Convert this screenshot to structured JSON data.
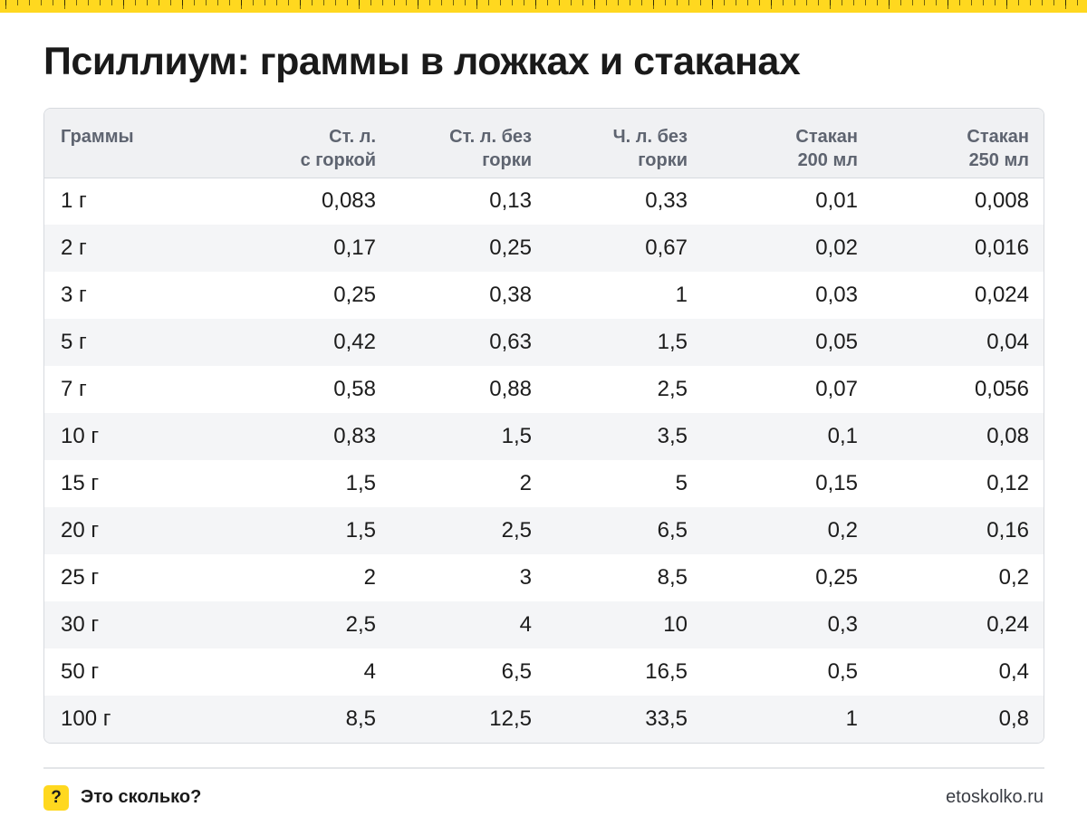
{
  "title": "Псиллиум: граммы в ложках и стаканах",
  "table": {
    "headers": [
      [
        "Граммы",
        ""
      ],
      [
        "Ст. л.",
        "с горкой"
      ],
      [
        "Ст. л. без",
        "горки"
      ],
      [
        "Ч. л. без",
        "горки"
      ],
      [
        "Стакан",
        "200 мл"
      ],
      [
        "Стакан",
        "250 мл"
      ]
    ],
    "rows": [
      [
        "1 г",
        "0,083",
        "0,13",
        "0,33",
        "0,01",
        "0,008"
      ],
      [
        "2 г",
        "0,17",
        "0,25",
        "0,67",
        "0,02",
        "0,016"
      ],
      [
        "3 г",
        "0,25",
        "0,38",
        "1",
        "0,03",
        "0,024"
      ],
      [
        "5 г",
        "0,42",
        "0,63",
        "1,5",
        "0,05",
        "0,04"
      ],
      [
        "7 г",
        "0,58",
        "0,88",
        "2,5",
        "0,07",
        "0,056"
      ],
      [
        "10 г",
        "0,83",
        "1,5",
        "3,5",
        "0,1",
        "0,08"
      ],
      [
        "15 г",
        "1,5",
        "2",
        "5",
        "0,15",
        "0,12"
      ],
      [
        "20 г",
        "1,5",
        "2,5",
        "6,5",
        "0,2",
        "0,16"
      ],
      [
        "25 г",
        "2",
        "3",
        "8,5",
        "0,25",
        "0,2"
      ],
      [
        "30 г",
        "2,5",
        "4",
        "10",
        "0,3",
        "0,24"
      ],
      [
        "50 г",
        "4",
        "6,5",
        "16,5",
        "0,5",
        "0,4"
      ],
      [
        "100 г",
        "8,5",
        "12,5",
        "33,5",
        "1",
        "0,8"
      ]
    ]
  },
  "footer": {
    "logo_glyph": "?",
    "brand": "Это сколько?",
    "site": "etoskolko.ru"
  },
  "colors": {
    "accent_yellow": "#ffd81f",
    "header_bg": "#f0f1f3",
    "stripe_bg": "#f4f5f7",
    "header_text": "#5e6470"
  }
}
